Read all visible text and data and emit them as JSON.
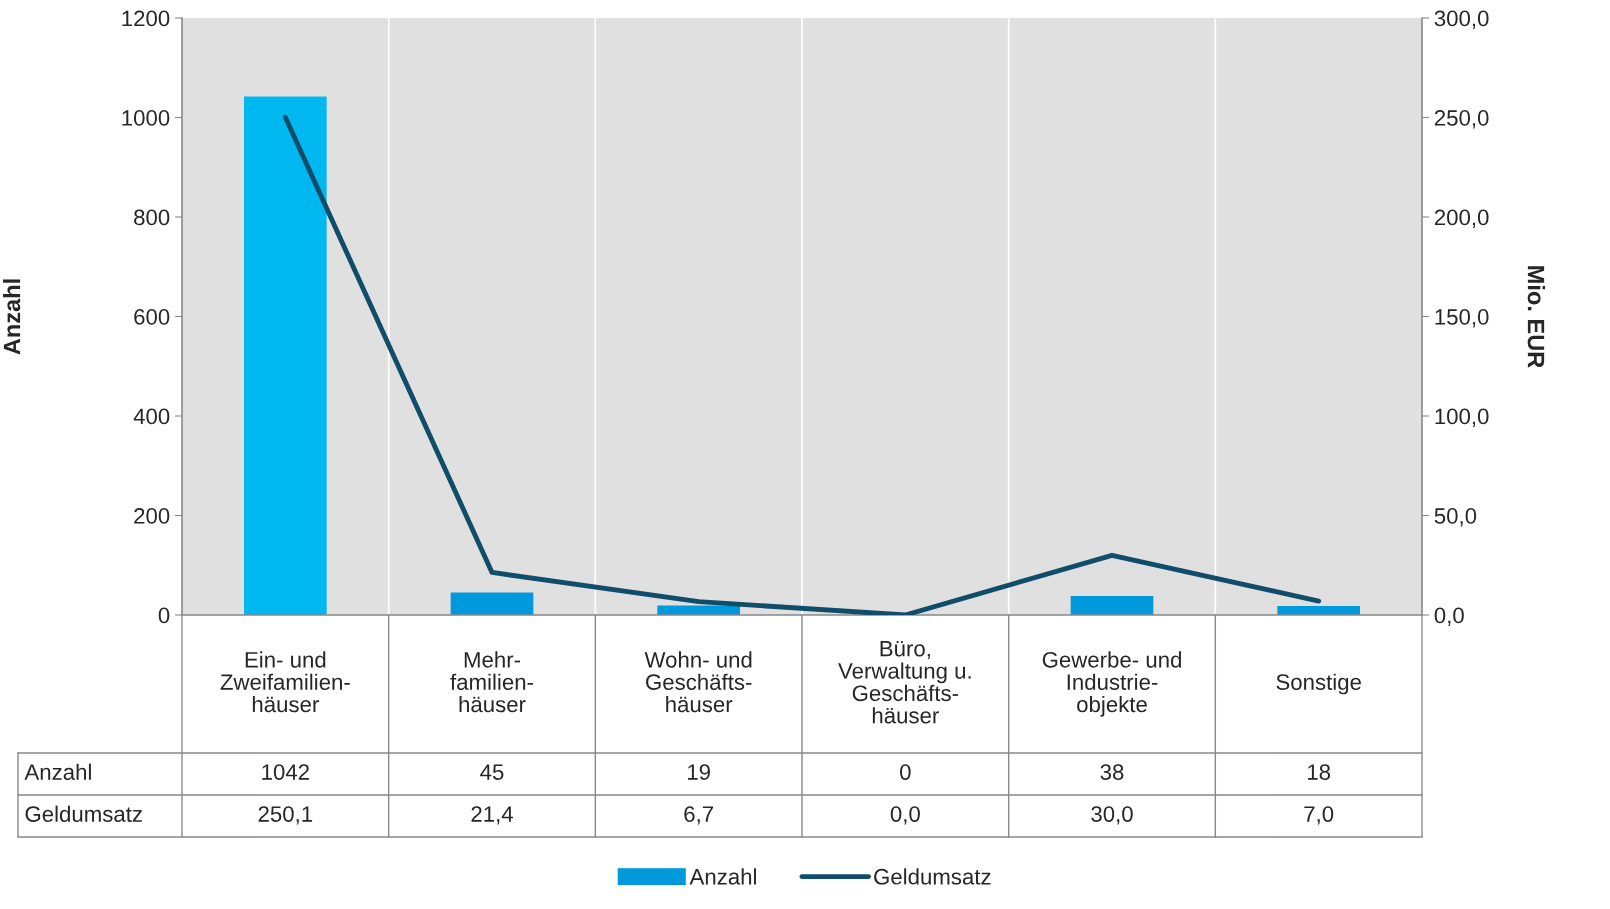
{
  "chart_data": {
    "type": "bar",
    "categories": [
      "Ein- und\nZweifamilien-\nhäuser",
      "Mehr-\nfamilien-\nhäuser",
      "Wohn- und\nGeschäfts-\nhäuser",
      "Büro,\nVerwaltung u.\nGeschäfts-\nhäuser",
      "Gewerbe- und\nIndustrie-\nobjekte",
      "Sonstige"
    ],
    "series": [
      {
        "name": "Anzahl",
        "colors": [
          "#00b8f0",
          "#0099dc",
          "#0099dc",
          "#0099dc",
          "#0099dc",
          "#0099dc"
        ],
        "color": "#0099dc",
        "values": [
          1042,
          45,
          19,
          0,
          38,
          18
        ],
        "value_labels": [
          "1042",
          "45",
          "19",
          "0",
          "38",
          "18"
        ]
      },
      {
        "name": "Geldumsatz",
        "type": "line",
        "axis": "y2",
        "color": "#0f4d6a",
        "values": [
          250.1,
          21.4,
          6.7,
          0.0,
          30.0,
          7.0
        ],
        "value_labels": [
          "250,1",
          "21,4",
          "6,7",
          "0,0",
          "30,0",
          "7,0"
        ]
      }
    ],
    "ylabel": "Anzahl",
    "y2label": "Mio. EUR",
    "ylim": [
      0,
      1200
    ],
    "yticks": [
      0,
      200,
      400,
      600,
      800,
      1000,
      1200
    ],
    "y2lim": [
      0,
      300
    ],
    "y2ticks": [
      {
        "value": 0,
        "label": "0,0"
      },
      {
        "value": 50,
        "label": "50,0"
      },
      {
        "value": 100,
        "label": "100,0"
      },
      {
        "value": 150,
        "label": "150,0"
      },
      {
        "value": 200,
        "label": "200,0"
      },
      {
        "value": 250,
        "label": "250,0"
      },
      {
        "value": 300,
        "label": "300,0"
      }
    ],
    "grid": "x",
    "legend": "bottom",
    "marker": "none",
    "line_style": "solid"
  }
}
